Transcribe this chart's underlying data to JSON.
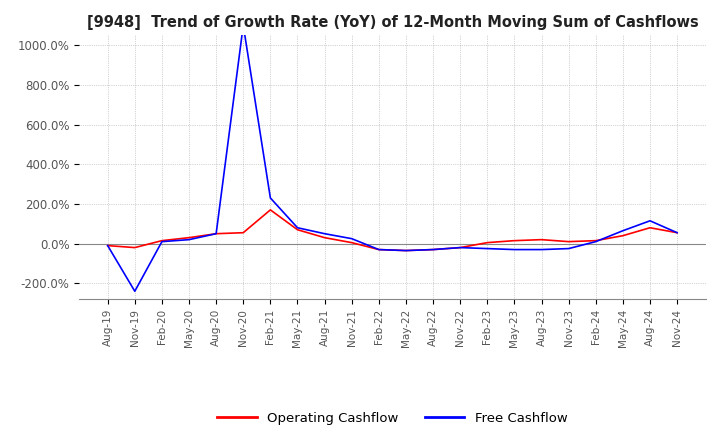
{
  "title": "[9948]  Trend of Growth Rate (YoY) of 12-Month Moving Sum of Cashflows",
  "ylim": [
    -280,
    1050
  ],
  "yticks": [
    -200,
    0,
    200,
    400,
    600,
    800,
    1000
  ],
  "ytick_labels": [
    "-200.0%",
    "0.0%",
    "200.0%",
    "400.0%",
    "600.0%",
    "800.0%",
    "1000.0%"
  ],
  "background_color": "#ffffff",
  "grid_color": "#aaaaaa",
  "legend_items": [
    "Operating Cashflow",
    "Free Cashflow"
  ],
  "legend_colors": [
    "#ff0000",
    "#0000ff"
  ],
  "x_labels": [
    "Aug-19",
    "Nov-19",
    "Feb-20",
    "May-20",
    "Aug-20",
    "Nov-20",
    "Feb-21",
    "May-21",
    "Aug-21",
    "Nov-21",
    "Feb-22",
    "May-22",
    "Aug-22",
    "Nov-22",
    "Feb-23",
    "May-23",
    "Aug-23",
    "Nov-23",
    "Feb-24",
    "May-24",
    "Aug-24",
    "Nov-24"
  ],
  "operating_cashflow": [
    -10,
    -20,
    15,
    30,
    50,
    55,
    170,
    70,
    30,
    5,
    -30,
    -35,
    -30,
    -20,
    5,
    15,
    20,
    10,
    15,
    40,
    80,
    55
  ],
  "free_cashflow": [
    -10,
    -240,
    10,
    20,
    50,
    1100,
    230,
    80,
    50,
    25,
    -30,
    -35,
    -30,
    -20,
    -25,
    -30,
    -30,
    -25,
    10,
    65,
    115,
    55
  ]
}
